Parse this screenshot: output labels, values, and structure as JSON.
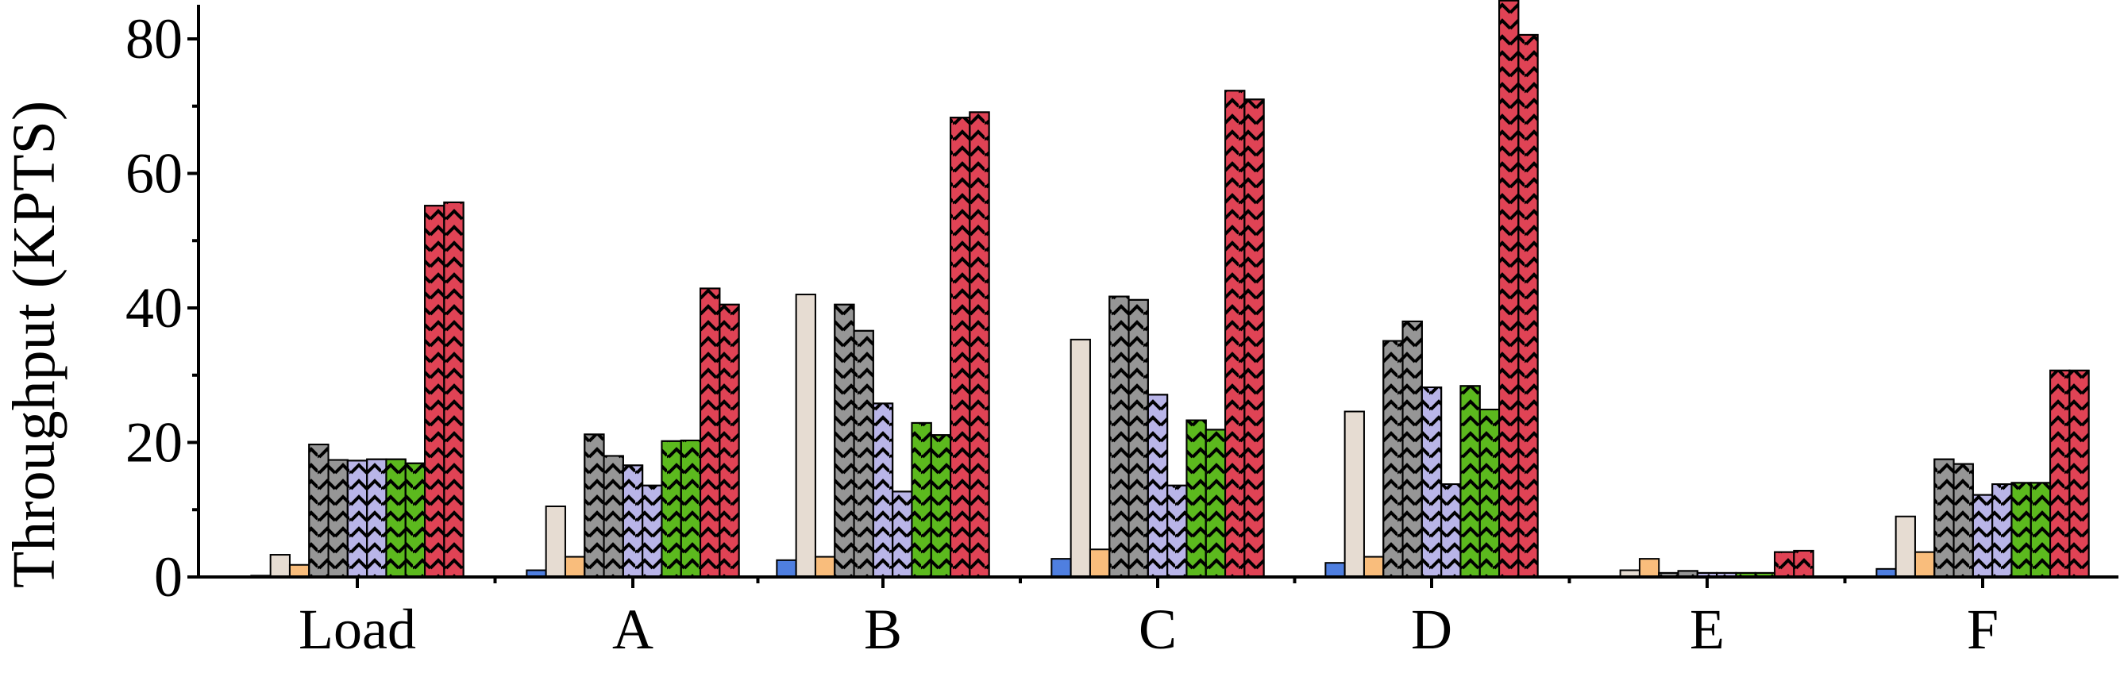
{
  "colors": {
    "blue": "#4f7fe0",
    "beige": "#e6dcd2",
    "orange": "#f9bd7c",
    "gray": "#969696",
    "lavender": "#b9b5e8",
    "green": "#5cb91e",
    "red": "#e04355"
  },
  "chart_data": {
    "type": "bar",
    "title": "",
    "xlabel": "",
    "ylabel": "Throughput (KPTS)",
    "ylim": [
      0,
      90
    ],
    "yticks": [
      0,
      20,
      40,
      60,
      80
    ],
    "grid": false,
    "categories": [
      "Load",
      "A",
      "B",
      "C",
      "D",
      "E",
      "F"
    ],
    "series": [
      {
        "color": "blue",
        "hatch": false,
        "values": [
          0.2,
          1.0,
          2.5,
          2.7,
          2.1,
          0.1,
          1.2
        ]
      },
      {
        "color": "beige",
        "hatch": false,
        "values": [
          3.3,
          10.5,
          42.0,
          35.3,
          24.6,
          1.0,
          9.0
        ]
      },
      {
        "color": "orange",
        "hatch": false,
        "values": [
          1.8,
          3.0,
          3.0,
          4.1,
          3.0,
          2.7,
          3.7
        ]
      },
      {
        "color": "gray",
        "hatch": true,
        "values": [
          19.7,
          21.2,
          40.5,
          41.7,
          35.1,
          0.6,
          17.5
        ]
      },
      {
        "color": "gray",
        "hatch": true,
        "values": [
          17.4,
          18.0,
          36.6,
          41.2,
          38.0,
          0.9,
          16.8
        ]
      },
      {
        "color": "lavender",
        "hatch": true,
        "values": [
          17.3,
          16.6,
          25.8,
          27.1,
          28.2,
          0.6,
          12.2
        ]
      },
      {
        "color": "lavender",
        "hatch": true,
        "values": [
          17.5,
          13.6,
          12.7,
          13.6,
          13.8,
          0.6,
          13.8
        ]
      },
      {
        "color": "green",
        "hatch": true,
        "values": [
          17.5,
          20.2,
          22.9,
          23.3,
          28.4,
          0.6,
          14.0
        ]
      },
      {
        "color": "green",
        "hatch": true,
        "values": [
          16.9,
          20.3,
          21.1,
          21.9,
          24.9,
          0.6,
          14.0
        ]
      },
      {
        "color": "red",
        "hatch": true,
        "values": [
          55.2,
          42.9,
          68.3,
          72.3,
          85.7,
          3.7,
          30.7
        ]
      },
      {
        "color": "red",
        "hatch": true,
        "values": [
          55.7,
          40.5,
          69.1,
          71.0,
          80.6,
          3.9,
          30.7
        ]
      }
    ]
  }
}
